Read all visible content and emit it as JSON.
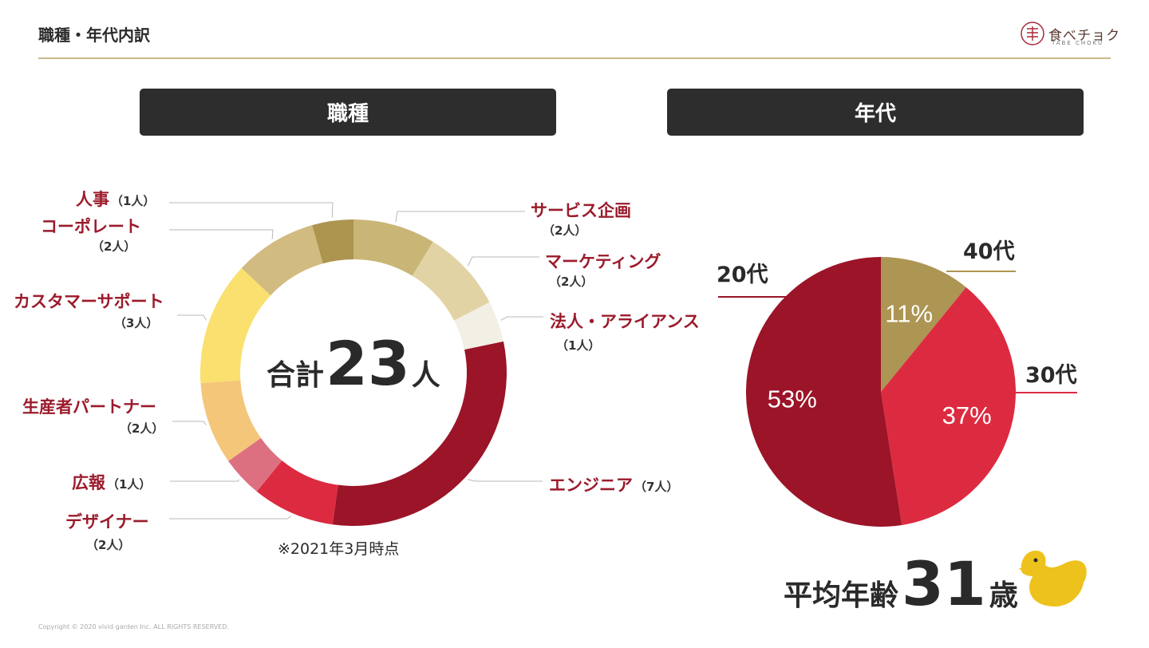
{
  "header": {
    "title": "職種・年代内訳",
    "logo_text": "食べチョク",
    "logo_sub": "TABE CHOKU"
  },
  "sections": {
    "job_label": "職種",
    "age_label": "年代"
  },
  "job_chart": {
    "total_prefix": "合計",
    "total_value": "23",
    "total_unit": "人",
    "as_of": "※2021年3月時点"
  },
  "age_chart": {
    "avg_prefix": "平均年齢",
    "avg_value": "31",
    "avg_unit": "歳"
  },
  "footer": {
    "copyright": "Copyright © 2020 vivid garden Inc. ALL RIGHTS RESERVED."
  },
  "colors": {
    "header_bg": "#2d2d2d",
    "accent_rule": "#c8b98a",
    "label_red": "#9b1b2b"
  },
  "chart_data": [
    {
      "type": "pie",
      "variant": "donut",
      "title": "職種",
      "categories": [
        "サービス企画",
        "マーケティング",
        "法人・アライアンス",
        "エンジニア",
        "デザイナー",
        "広報",
        "生産者パートナー",
        "カスタマーサポート",
        "コーポレート",
        "人事"
      ],
      "values": [
        2,
        2,
        1,
        7,
        2,
        1,
        2,
        3,
        2,
        1
      ],
      "value_labels": [
        "（2人）",
        "（2人）",
        "（1人）",
        "（7人）",
        "（2人）",
        "（1人）",
        "（2人）",
        "（3人）",
        "（2人）",
        "（1人）"
      ],
      "colors": [
        "#c9b575",
        "#e2d3a4",
        "#f2efe4",
        "#9b1428",
        "#dc2a40",
        "#dd7080",
        "#f4c67a",
        "#fae06e",
        "#d2bb80",
        "#ad944f"
      ]
    },
    {
      "type": "pie",
      "title": "年代",
      "categories": [
        "40代",
        "30代",
        "20代"
      ],
      "values": [
        11,
        37,
        53
      ],
      "value_labels": [
        "11%",
        "37%",
        "53%"
      ],
      "colors": [
        "#ad9553",
        "#dc2b40",
        "#9b1428"
      ]
    }
  ]
}
